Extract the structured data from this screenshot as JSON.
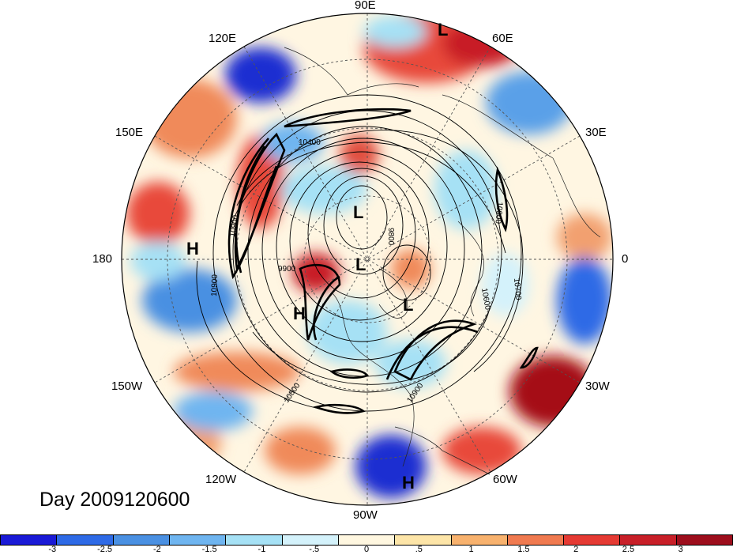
{
  "title": "Day 2009120600",
  "map": {
    "projection": "polar stereographic (north)",
    "longitude_labels": {
      "lon_90E": "90E",
      "lon_60E": "60E",
      "lon_120E": "120E",
      "lon_30E": "30E",
      "lon_150E": "150E",
      "lon_0": "0",
      "lon_180": "180",
      "lon_30W": "30W",
      "lon_150W": "150W",
      "lon_60W": "60W",
      "lon_120W": "120W",
      "lon_90W": "90W"
    },
    "pressure_centers": [
      {
        "type": "L",
        "region": "north Asia / 60E"
      },
      {
        "type": "L",
        "region": "central Arctic"
      },
      {
        "type": "L",
        "region": "Arctic near pole"
      },
      {
        "type": "L",
        "region": "Greenland"
      },
      {
        "type": "H",
        "region": "North Pacific near 180"
      },
      {
        "type": "H",
        "region": "Alaska / NW Canada"
      },
      {
        "type": "H",
        "region": "Central America / 90W"
      }
    ],
    "contour_labels": [
      "10400",
      "10900",
      "9900",
      "10900",
      "10800",
      "10600",
      "10700",
      "10900",
      "9800",
      "10900"
    ],
    "shading_colors": {
      "strong_positive": "#a50f15",
      "positive": "#ef3b2c",
      "weak_positive": "#fdae6b",
      "neutral": "#fff7e6",
      "weak_negative": "#a6e1f5",
      "negative": "#4a90e2",
      "strong_negative": "#1f2fd1"
    }
  },
  "colorbar": {
    "tick_labels": [
      "-3",
      "-2.5",
      "-2",
      "-1.5",
      "-1",
      "-.5",
      "0",
      ".5",
      "1",
      "1.5",
      "2",
      "2.5",
      "3"
    ],
    "colors": [
      "#1a1ad6",
      "#2e6ae6",
      "#4a90e2",
      "#6fb5f0",
      "#a6e1f5",
      "#d4f2fb",
      "#fff7e0",
      "#fde5a8",
      "#f8b26e",
      "#f07a50",
      "#e53a33",
      "#c81f28",
      "#9d0e1c"
    ]
  }
}
